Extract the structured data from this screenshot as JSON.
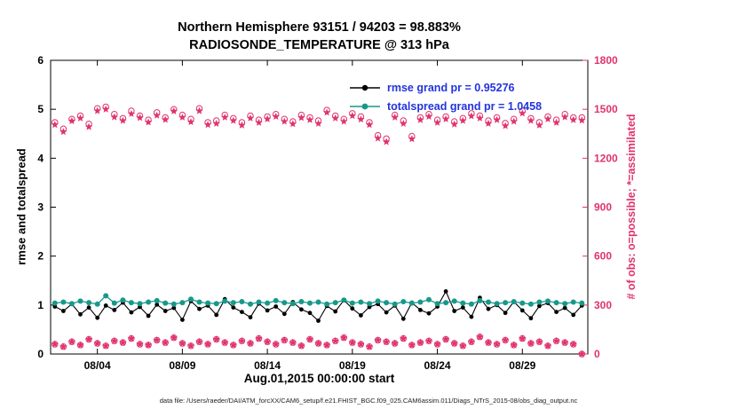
{
  "title": {
    "line1": "Northern Hemisphere 93151 / 94203 = 98.883%",
    "line2": "RADIOSONDE_TEMPERATURE @ 313 hPa"
  },
  "footer": {
    "datafile": "data file: /Users/raeder/DAI/ATM_forcXX/CAM6_setup/f.e21.FHIST_BGC.f09_025.CAM6assim.011/Diags_NTrS_2015-08/obs_diag_output.nc"
  },
  "colors": {
    "rmse_black": "#000000",
    "totalspread_teal": "#16998a",
    "observation_pink": "#e0336b",
    "legend_text_blue": "#2233dd"
  },
  "chart_data": {
    "type": "line",
    "title": "Northern Hemisphere 93151 / 94203 = 98.883%",
    "subtitle": "RADIOSONDE_TEMPERATURE @ 313 hPa",
    "xlabel": "Aug.01,2015 00:00:00 start",
    "ylabel_left": "rmse and totalspread",
    "ylabel_right": "# of obs: o=possible; *=assimilated",
    "grid": false,
    "legend_position": "top-center-inside",
    "x_range": [
      0.25,
      31.85
    ],
    "left_range": [
      0,
      6
    ],
    "right_range": [
      0,
      1800
    ],
    "left_ticks": [
      0,
      1,
      2,
      3,
      4,
      5,
      6
    ],
    "right_ticks": [
      0,
      300,
      600,
      900,
      1200,
      1500,
      1800
    ],
    "x_ticks": [
      {
        "day": 3,
        "label": "08/04"
      },
      {
        "day": 8,
        "label": "08/09"
      },
      {
        "day": 13,
        "label": "08/14"
      },
      {
        "day": 18,
        "label": "08/19"
      },
      {
        "day": 23,
        "label": "08/24"
      },
      {
        "day": 28,
        "label": "08/29"
      }
    ],
    "legend": [
      {
        "label": "rmse grand pr = 0.95276",
        "color": "#000000"
      },
      {
        "label": "totalspread grand pr = 1.0458",
        "color": "#16998a"
      }
    ],
    "x_unit": "days since Aug 01 2015 00:00",
    "x": [
      0.5,
      1.0,
      1.5,
      2.0,
      2.5,
      3.0,
      3.5,
      4.0,
      4.5,
      5.0,
      5.5,
      6.0,
      6.5,
      7.0,
      7.5,
      8.0,
      8.5,
      9.0,
      9.5,
      10.0,
      10.5,
      11.0,
      11.5,
      12.0,
      12.5,
      13.0,
      13.5,
      14.0,
      14.5,
      15.0,
      15.5,
      16.0,
      16.5,
      17.0,
      17.5,
      18.0,
      18.5,
      19.0,
      19.5,
      20.0,
      20.5,
      21.0,
      21.5,
      22.0,
      22.5,
      23.0,
      23.5,
      24.0,
      24.5,
      25.0,
      25.5,
      26.0,
      26.5,
      27.0,
      27.5,
      28.0,
      28.5,
      29.0,
      29.5,
      30.0,
      30.5,
      31.0,
      31.5
    ],
    "series": [
      {
        "name": "rmse",
        "axis": "left",
        "line": true,
        "lw": 1.1,
        "marker": "filled-circle",
        "msize": 2.4,
        "color": "#000000",
        "grand_value": 0.95276,
        "values": [
          0.97,
          0.88,
          1.02,
          0.81,
          0.95,
          0.74,
          0.99,
          0.9,
          1.05,
          0.85,
          0.96,
          0.78,
          1.01,
          0.88,
          0.94,
          0.7,
          1.08,
          0.92,
          0.99,
          0.8,
          1.12,
          0.95,
          0.86,
          0.75,
          1.03,
          0.89,
          0.97,
          0.82,
          1.06,
          0.91,
          0.84,
          0.68,
          0.98,
          0.87,
          1.1,
          0.93,
          0.79,
          0.96,
          1.02,
          0.85,
          0.99,
          0.72,
          1.05,
          0.9,
          0.83,
          0.97,
          1.28,
          0.88,
          0.95,
          0.76,
          1.15,
          0.92,
          1.0,
          0.84,
          1.07,
          0.89,
          0.73,
          0.98,
          1.04,
          0.86,
          0.94,
          0.8,
          0.99
        ]
      },
      {
        "name": "totalspread",
        "axis": "left",
        "line": true,
        "lw": 1.3,
        "marker": "filled-circle",
        "msize": 3.0,
        "color": "#16998a",
        "grand_value": 1.0458,
        "values": [
          1.04,
          1.06,
          1.03,
          1.08,
          1.05,
          1.02,
          1.19,
          1.04,
          1.1,
          1.05,
          1.03,
          1.06,
          1.09,
          1.04,
          1.02,
          1.05,
          1.12,
          1.06,
          1.04,
          1.03,
          1.08,
          1.05,
          1.07,
          1.02,
          1.06,
          1.04,
          1.09,
          1.05,
          1.03,
          1.07,
          1.04,
          1.06,
          1.02,
          1.05,
          1.1,
          1.04,
          1.06,
          1.03,
          1.08,
          1.05,
          1.02,
          1.07,
          1.04,
          1.06,
          1.11,
          1.03,
          1.05,
          1.08,
          1.04,
          1.02,
          1.09,
          1.06,
          1.03,
          1.05,
          1.07,
          1.04,
          1.02,
          1.06,
          1.08,
          1.05,
          1.03,
          1.06,
          1.04
        ]
      },
      {
        "name": "num-obs-possible",
        "axis": "right",
        "line": false,
        "marker": "circle",
        "msize": 3.2,
        "color": "#e0336b",
        "values": [
          1420,
          1380,
          1440,
          1460,
          1410,
          1505,
          1515,
          1470,
          1445,
          1490,
          1460,
          1435,
          1480,
          1450,
          1500,
          1465,
          1440,
          1505,
          1420,
          1430,
          1465,
          1445,
          1420,
          1460,
          1435,
          1455,
          1470,
          1440,
          1425,
          1465,
          1450,
          1430,
          1495,
          1460,
          1440,
          1475,
          1455,
          1420,
          1340,
          1320,
          1465,
          1430,
          1335,
          1450,
          1470,
          1435,
          1455,
          1425,
          1445,
          1475,
          1460,
          1430,
          1450,
          1415,
          1440,
          1490,
          1445,
          1420,
          1455,
          1435,
          1470,
          1450,
          1450
        ]
      },
      {
        "name": "num-obs-assimilated",
        "axis": "right",
        "line": false,
        "marker": "star",
        "msize": 4.4,
        "color": "#e0336b",
        "values": [
          1405,
          1362,
          1428,
          1445,
          1392,
          1490,
          1500,
          1452,
          1430,
          1472,
          1448,
          1420,
          1462,
          1436,
          1488,
          1450,
          1422,
          1490,
          1405,
          1412,
          1450,
          1430,
          1402,
          1445,
          1418,
          1440,
          1455,
          1425,
          1410,
          1448,
          1435,
          1412,
          1480,
          1445,
          1425,
          1460,
          1438,
          1405,
          1322,
          1300,
          1450,
          1412,
          1318,
          1435,
          1455,
          1418,
          1440,
          1408,
          1430,
          1458,
          1445,
          1412,
          1435,
          1398,
          1425,
          1475,
          1430,
          1402,
          1440,
          1418,
          1452,
          1435,
          1432
        ]
      },
      {
        "name": "num-obs-low-cluster",
        "axis": "right",
        "line": false,
        "marker": "circle-star",
        "msize": 4.4,
        "color": "#e0336b",
        "values": [
          60,
          45,
          75,
          55,
          90,
          65,
          50,
          80,
          70,
          95,
          60,
          55,
          85,
          70,
          100,
          65,
          50,
          75,
          60,
          90,
          70,
          55,
          80,
          65,
          95,
          75,
          60,
          85,
          70,
          50,
          90,
          65,
          55,
          80,
          100,
          70,
          60,
          45,
          85,
          75,
          65,
          95,
          55,
          70,
          80,
          60,
          90,
          65,
          50,
          75,
          105,
          70,
          60,
          85,
          55,
          95,
          65,
          75,
          50,
          80,
          70,
          60,
          0
        ]
      }
    ]
  }
}
